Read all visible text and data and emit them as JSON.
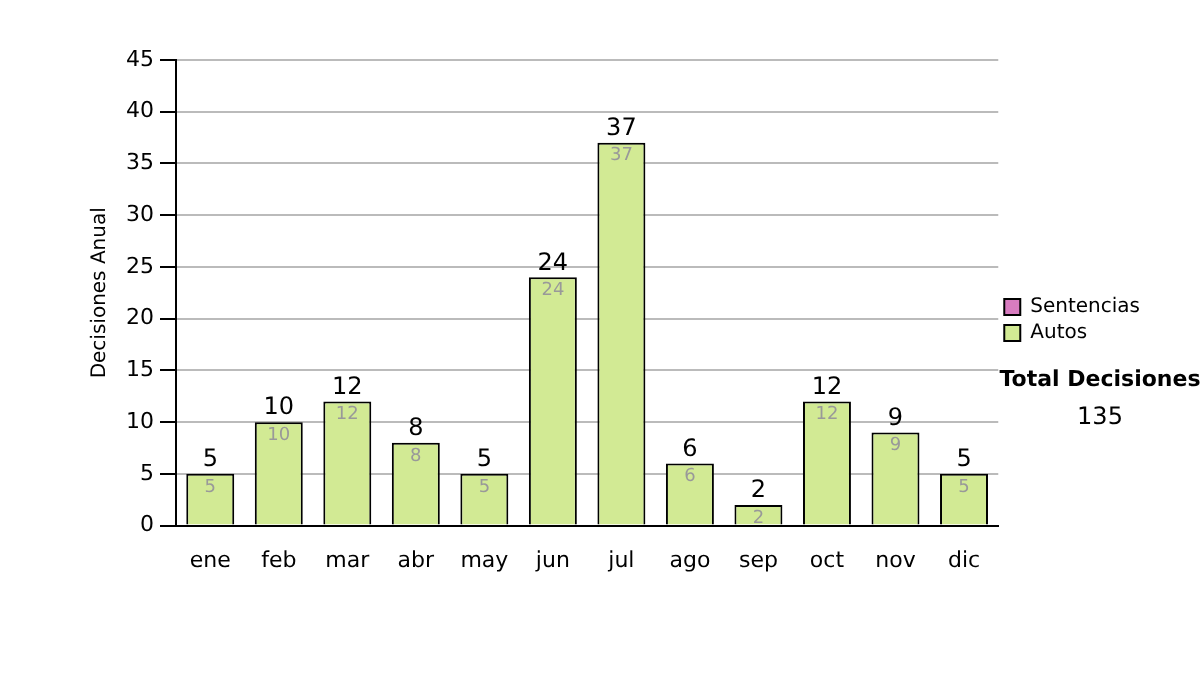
{
  "chart_data": {
    "type": "bar",
    "ylabel": "Decisiones Anual",
    "categories": [
      "ene",
      "feb",
      "mar",
      "abr",
      "may",
      "jun",
      "jul",
      "ago",
      "sep",
      "oct",
      "nov",
      "dic"
    ],
    "series": [
      {
        "name": "Sentencias",
        "color": "#d87cc0",
        "values": [
          0,
          0,
          0,
          0,
          0,
          0,
          0,
          0,
          0,
          0,
          0,
          0
        ],
        "value_labels": [
          null,
          null,
          null,
          null,
          null,
          null,
          null,
          null,
          null,
          null,
          null,
          null
        ]
      },
      {
        "name": "Autos",
        "color": "#d2ea94",
        "values": [
          5,
          10,
          12,
          8,
          5,
          24,
          37,
          6,
          2,
          12,
          9,
          5
        ],
        "value_labels": [
          "5",
          "10",
          "12",
          "8",
          "5",
          "24",
          "37",
          "6",
          "2",
          "12",
          "9",
          "5"
        ]
      }
    ],
    "stacked": true,
    "totals": [
      "5",
      "10",
      "12",
      "8",
      "5",
      "24",
      "37",
      "6",
      "2",
      "12",
      "9",
      "5"
    ],
    "ylim": [
      0,
      45
    ],
    "yticks": [
      0,
      5,
      10,
      15,
      20,
      25,
      30,
      35,
      40,
      45
    ],
    "grid": "y",
    "legend": "right",
    "annotations": [
      "Total Decisiones",
      "135"
    ]
  }
}
